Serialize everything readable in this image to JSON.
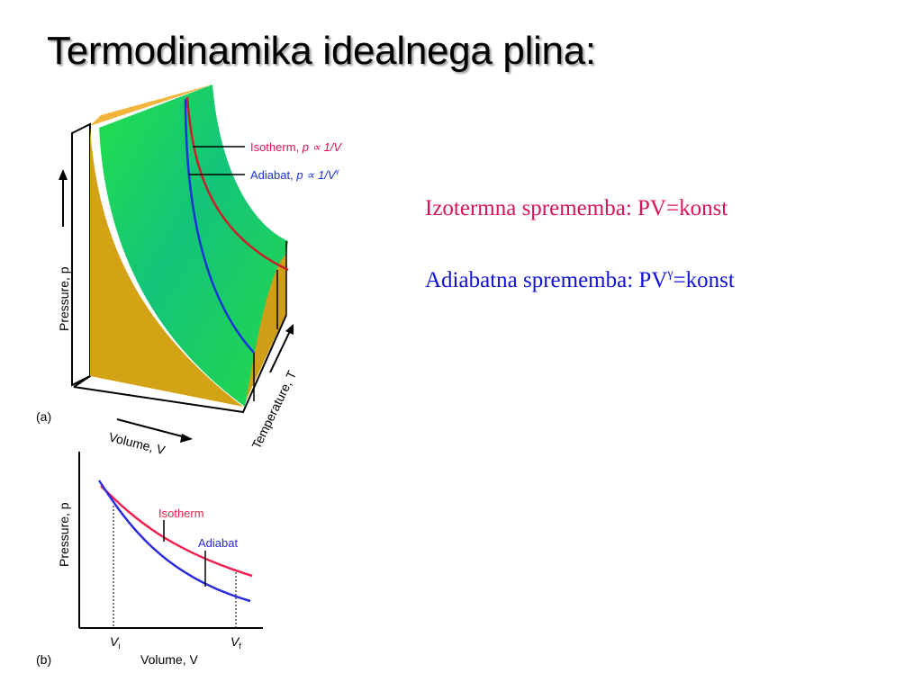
{
  "slide": {
    "title": "Termodinamika idealnega plina:",
    "equations": [
      {
        "text": "Izotermna sprememba: PV=konst",
        "color": "#d8135a"
      },
      {
        "text_before": "Adiabatna sprememba: PV",
        "superscript": "γ",
        "text_after": "=konst",
        "color": "#1010d8"
      }
    ]
  },
  "figure_a": {
    "label": "(a)",
    "isotherm_label": "Isotherm, ",
    "isotherm_formula": "p ∝ 1/V",
    "adiabat_label": "Adiabat, ",
    "adiabat_formula": "p ∝ 1/V",
    "adiabat_exponent": "γ",
    "y_axis_label": "Pressure, p",
    "x_axis_label": "Volume, V",
    "z_axis_label": "Temperature, T",
    "colors": {
      "surface": "#22d04a",
      "side": "#d6a418",
      "top": "#f0b030",
      "isotherm": "#c8202a",
      "adiabat": "#1a32d8"
    }
  },
  "figure_b": {
    "label": "(b)",
    "isotherm_label": "Isotherm",
    "adiabat_label": "Adiabat",
    "y_axis_label": "Pressure, p",
    "x_axis_label": "Volume, V",
    "vi_label": "V",
    "vi_sub": "i",
    "vf_label": "V",
    "vf_sub": "f",
    "colors": {
      "isotherm": "#f0204e",
      "adiabat": "#2a2ae0"
    }
  }
}
